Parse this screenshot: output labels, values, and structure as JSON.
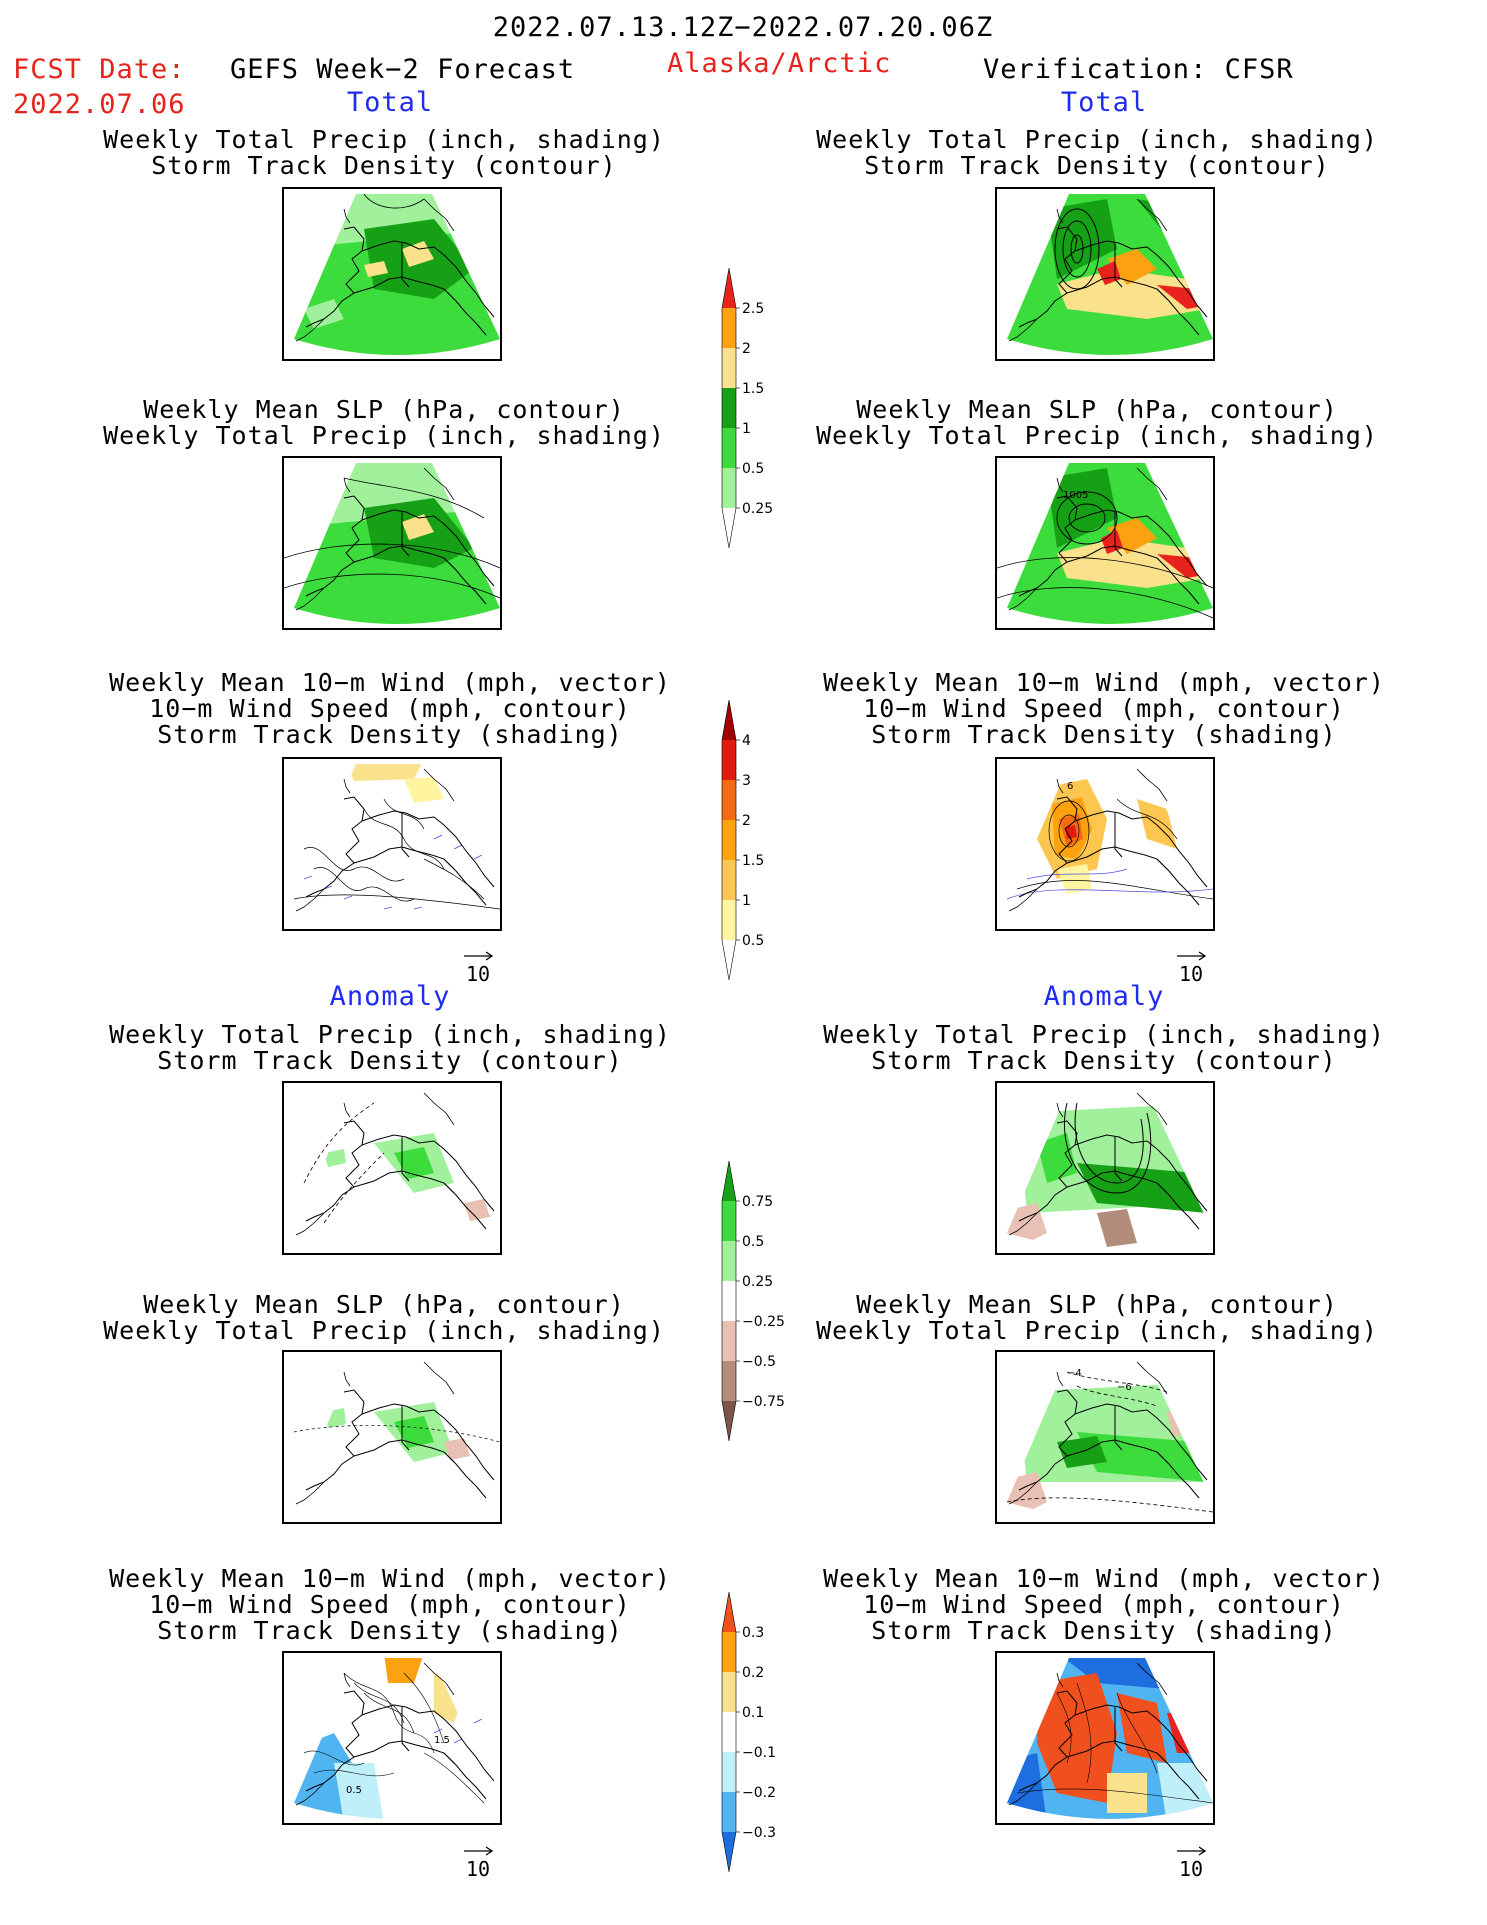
{
  "header": {
    "date_range": "2022.07.13.12Z−2022.07.20.06Z",
    "fcst_label": "FCST Date:",
    "fcst_date": "2022.07.06",
    "left_title": "GEFS Week−2 Forecast",
    "region": "Alaska/Arctic",
    "right_title": "Verification: CFSR"
  },
  "sections": {
    "total": "Total",
    "anomaly": "Anomaly"
  },
  "panel_titles": {
    "precip_storm": [
      "Weekly Total Precip (inch, shading)",
      "Storm Track Density (contour)"
    ],
    "slp_precip": [
      "Weekly Mean SLP (hPa, contour)",
      "Weekly Total Precip (inch, shading)"
    ],
    "wind_storm": [
      "Weekly Mean 10−m Wind (mph, vector)",
      "10−m Wind Speed (mph, contour)",
      "Storm Track Density (shading)"
    ]
  },
  "vector_ref": "10",
  "map_labels": {
    "slp_total_obs": "1005",
    "wind_total_obs": "6",
    "slp_anom_obs_a": "−4",
    "slp_anom_obs_b": "−6",
    "wind_anom_fcst_a": "1.5",
    "wind_anom_fcst_b": "0.5"
  },
  "colorbars": {
    "precip_total": {
      "labels": [
        "2.5",
        "2",
        "1.5",
        "1",
        "0.5",
        "0.25"
      ],
      "colors": [
        "#e8231e",
        "#fca10f",
        "#fae18c",
        "#16a016",
        "#3cdc3c",
        "#a0f09c"
      ]
    },
    "storm_total": {
      "labels": [
        "4",
        "3",
        "2",
        "1.5",
        "1",
        "0.5"
      ],
      "colors": [
        "#a00000",
        "#e11c0f",
        "#f56a14",
        "#fca10f",
        "#fcc650",
        "#fff5a0"
      ]
    },
    "precip_anom": {
      "labels": [
        "0.75",
        "0.5",
        "0.25",
        "−0.25",
        "−0.5",
        "−0.75"
      ],
      "colors": [
        "#16a016",
        "#3cdc3c",
        "#a0f09c",
        "#ffffff",
        "#e8c0b4",
        "#b48c7c",
        "#7c5448"
      ]
    },
    "storm_anom": {
      "labels": [
        "0.3",
        "0.2",
        "0.1",
        "−0.1",
        "−0.2",
        "−0.3"
      ],
      "colors": [
        "#f0501e",
        "#fca10f",
        "#fae18c",
        "#ffffff",
        "#bfeff8",
        "#50b4f0",
        "#1e6ee0"
      ]
    }
  }
}
